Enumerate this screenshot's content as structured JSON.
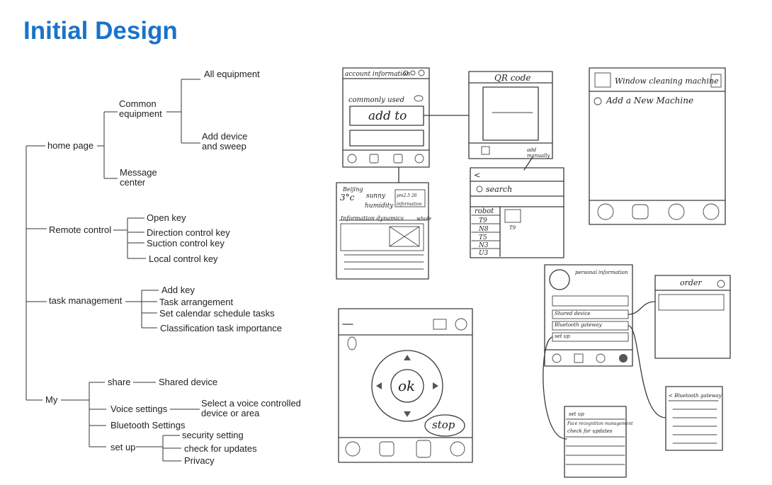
{
  "title": "Initial Design",
  "tree": {
    "home_page": "home page",
    "common_equipment": "Common\nequipment",
    "all_equipment": "All equipment",
    "add_device": "Add device\nand sweep",
    "message_center": "Message\ncenter",
    "remote_control": "Remote control",
    "open_key": "Open key",
    "direction_key": "Direction control key",
    "suction_key": "Suction control key",
    "local_key": "Local control key",
    "task_management": "task management",
    "add_key": "Add key",
    "task_arrangement": "Task arrangement",
    "calendar_tasks": "Set calendar schedule tasks",
    "classification": "Classification task importance",
    "my": "My",
    "share": "share",
    "shared_device": "Shared device",
    "voice_settings": "Voice settings",
    "voice_select": "Select a voice controlled\ndevice or area",
    "bluetooth_settings": "Bluetooth Settings",
    "set_up": "set up",
    "security_setting": "security setting",
    "check_updates": "check for updates",
    "privacy": "Privacy"
  },
  "sketches": {
    "home": {
      "header": "account information",
      "commonly_used": "commonly used",
      "add_to": "add to"
    },
    "qr": {
      "title": "QR code",
      "add_manually": "add manually"
    },
    "weather": {
      "city": "Beijing",
      "temp": "3°c",
      "sunny": "sunny",
      "humidity": "humidity",
      "pm": "pm2.5 26",
      "info": "information",
      "dynamics": "Information dynamics",
      "whole": "whole"
    },
    "search": {
      "search": "search",
      "robot": "robot",
      "models": [
        "T9",
        "N8",
        "T5",
        "N3",
        "U3"
      ],
      "selected_model": "T9"
    },
    "window": {
      "title": "Window cleaning machine",
      "add_machine": "Add a New Machine"
    },
    "remote": {
      "ok": "ok",
      "stop": "stop"
    },
    "personal": {
      "title": "personal information",
      "shared_device": "Shared device",
      "bluetooth": "Bluetooth gateway",
      "set_up": "set up"
    },
    "order": {
      "title": "order"
    },
    "bluetooth_page": {
      "title": "< Bluetooth gateway"
    },
    "setup_page": {
      "title": "set up",
      "face": "Face recognition management",
      "updates": "check for updates"
    }
  }
}
